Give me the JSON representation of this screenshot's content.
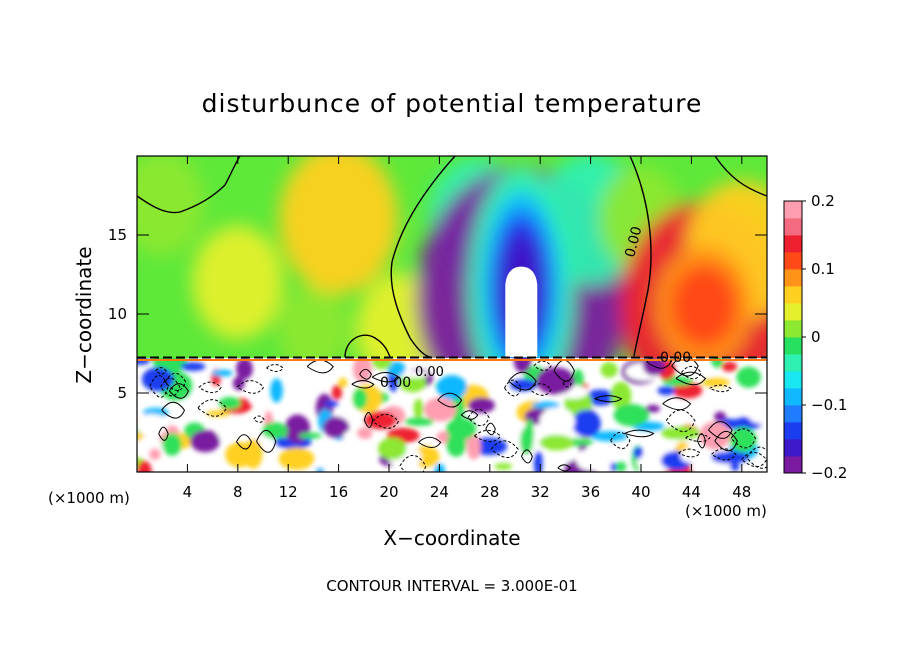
{
  "title": "disturbunce of potential temperature",
  "footer": "CONTOUR INTERVAL = 3.000E-01",
  "chart_data": {
    "type": "heatmap",
    "title": "disturbunce of potential temperature",
    "xlabel": "X−coordinate",
    "ylabel": "Z−coordinate",
    "x_unit": "(×1000 m)",
    "y_unit": "(×1000 m)",
    "xlim": [
      0,
      50
    ],
    "ylim": [
      0,
      20
    ],
    "x_ticks": [
      4,
      8,
      12,
      16,
      20,
      24,
      28,
      32,
      36,
      40,
      44,
      48
    ],
    "x_tick_labels": [
      "4",
      "8",
      "12",
      "16",
      "20",
      "24",
      "28",
      "32",
      "36",
      "40",
      "44",
      "48"
    ],
    "y_ticks": [
      5,
      10,
      15
    ],
    "y_tick_labels": [
      "5",
      "10",
      "15"
    ],
    "colorbar": {
      "range": [
        -0.2,
        0.2
      ],
      "ticks": [
        -0.2,
        -0.1,
        0,
        0.1,
        0.2
      ],
      "tick_labels": [
        "−0.2",
        "−0.1",
        "0",
        "0.1",
        "0.2"
      ],
      "colors": [
        "#7a1aa0",
        "#3c18c8",
        "#1c3cf0",
        "#1f7cff",
        "#10b8ff",
        "#18e6f0",
        "#2ef0b0",
        "#28e060",
        "#8ce830",
        "#e4f02c",
        "#ffd020",
        "#ff9418",
        "#ff4a18",
        "#ee2030",
        "#f46a80",
        "#ff9eb0"
      ]
    },
    "contour_labels": [
      "0.00",
      "0.00",
      "0.00",
      "0.00"
    ],
    "contour_interval": 0.3,
    "upper_field": [
      {
        "x": 2,
        "z": 17,
        "value": 0.02
      },
      {
        "x": 8,
        "z": 12,
        "value": 0.03
      },
      {
        "x": 14,
        "z": 9,
        "value": 0.0
      },
      {
        "x": 16,
        "z": 16,
        "value": 0.07
      },
      {
        "x": 21,
        "z": 9,
        "value": 0.03
      },
      {
        "x": 27,
        "z": 16,
        "value": -0.04
      },
      {
        "x": 30.5,
        "z": 11,
        "value": -0.2
      },
      {
        "x": 36,
        "z": 16,
        "value": -0.05
      },
      {
        "x": 40,
        "z": 16,
        "value": 0.02
      },
      {
        "x": 45,
        "z": 10.5,
        "value": 0.14
      },
      {
        "x": 48,
        "z": 14,
        "value": 0.06
      }
    ]
  }
}
